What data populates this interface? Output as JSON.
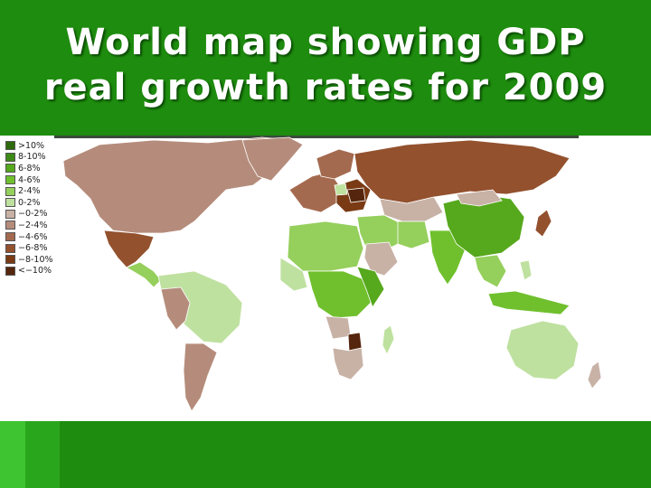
{
  "slide": {
    "title_line1": "World map showing GDP",
    "title_line2": "real growth rates for 2009"
  },
  "legend": [
    {
      "label": ">10%",
      "color": "#2d6a0d"
    },
    {
      "label": "8-10%",
      "color": "#3d8a17"
    },
    {
      "label": "6-8%",
      "color": "#56a81c"
    },
    {
      "label": "4-6%",
      "color": "#70c02e"
    },
    {
      "label": "2-4%",
      "color": "#95cf5c"
    },
    {
      "label": "0-2%",
      "color": "#bfe1a0"
    },
    {
      "label": "−0-2%",
      "color": "#c8b2a6"
    },
    {
      "label": "−2-4%",
      "color": "#b58c7b"
    },
    {
      "label": "−4-6%",
      "color": "#a46a4f"
    },
    {
      "label": "−6-8%",
      "color": "#93512e"
    },
    {
      "label": "−8-10%",
      "color": "#7a3a14"
    },
    {
      "label": "<−10%",
      "color": "#55260d"
    }
  ],
  "colors": {
    "background": "#1e8c0e",
    "map_panel": "#ffffff",
    "title_text": "#ffffff"
  }
}
